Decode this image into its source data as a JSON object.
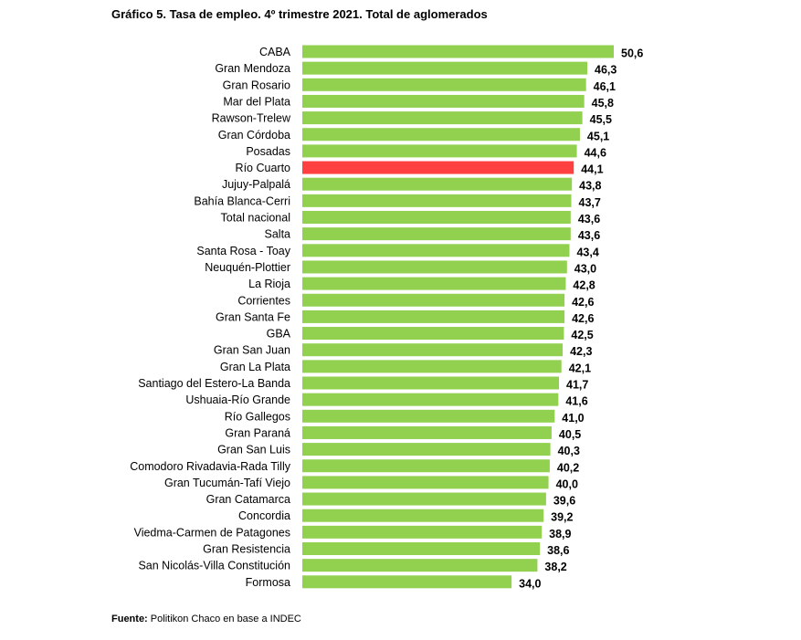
{
  "title": "Gráfico 5. Tasa de empleo. 4º trimestre 2021. Total de aglomerados",
  "footer": {
    "label": "Fuente:",
    "text": " Politikon Chaco en base a INDEC"
  },
  "colors": {
    "bar": "#92d050",
    "highlight": "#ff4040"
  },
  "chart_data": {
    "type": "bar",
    "orientation": "horizontal",
    "title": "Gráfico 5. Tasa de empleo. 4º trimestre 2021. Total de aglomerados",
    "xlabel": "",
    "ylabel": "",
    "grid": false,
    "legend": "none",
    "highlighted_category": "Río Cuarto",
    "categories": [
      "CABA",
      "Gran Mendoza",
      "Gran Rosario ",
      "Mar del Plata",
      "Rawson-Trelew",
      "Gran Córdoba",
      "Posadas",
      "Río Cuarto",
      "Jujuy-Palpalá",
      "Bahía Blanca-Cerri",
      "Total nacional",
      "Salta",
      "Santa Rosa - Toay",
      "Neuquén-Plottier",
      "La Rioja",
      "Corrientes",
      "Gran Santa Fe",
      "GBA",
      "Gran San Juan",
      "Gran La Plata",
      "Santiago del Estero-La Banda",
      "Ushuaia-Río Grande",
      "Río Gallegos ",
      "Gran Paraná",
      "Gran San Luis",
      "Comodoro Rivadavia-Rada Tilly",
      "Gran Tucumán-Tafí Viejo",
      "Gran Catamarca",
      "Concordia",
      "Viedma-Carmen de Patagones",
      "Gran Resistencia ",
      "San Nicolás-Villa Constitución",
      "Formosa"
    ],
    "values": [
      50.6,
      46.3,
      46.1,
      45.8,
      45.5,
      45.1,
      44.6,
      44.1,
      43.8,
      43.7,
      43.6,
      43.6,
      43.4,
      43.0,
      42.8,
      42.6,
      42.6,
      42.5,
      42.3,
      42.1,
      41.7,
      41.6,
      41.0,
      40.5,
      40.3,
      40.2,
      40.0,
      39.6,
      39.2,
      38.9,
      38.6,
      38.2,
      34.0
    ],
    "value_labels": [
      "50,6",
      "46,3",
      "46,1",
      "45,8",
      "45,5",
      "45,1",
      "44,6",
      "44,1",
      "43,8",
      "43,7",
      "43,6",
      "43,6",
      "43,4",
      "43,0",
      "42,8",
      "42,6",
      "42,6",
      "42,5",
      "42,3",
      "42,1",
      "41,7",
      "41,6",
      "41,0",
      "40,5",
      "40,3",
      "40,2",
      "40,0",
      "39,6",
      "39,2",
      "38,9",
      "38,6",
      "38,2",
      "34,0"
    ]
  }
}
